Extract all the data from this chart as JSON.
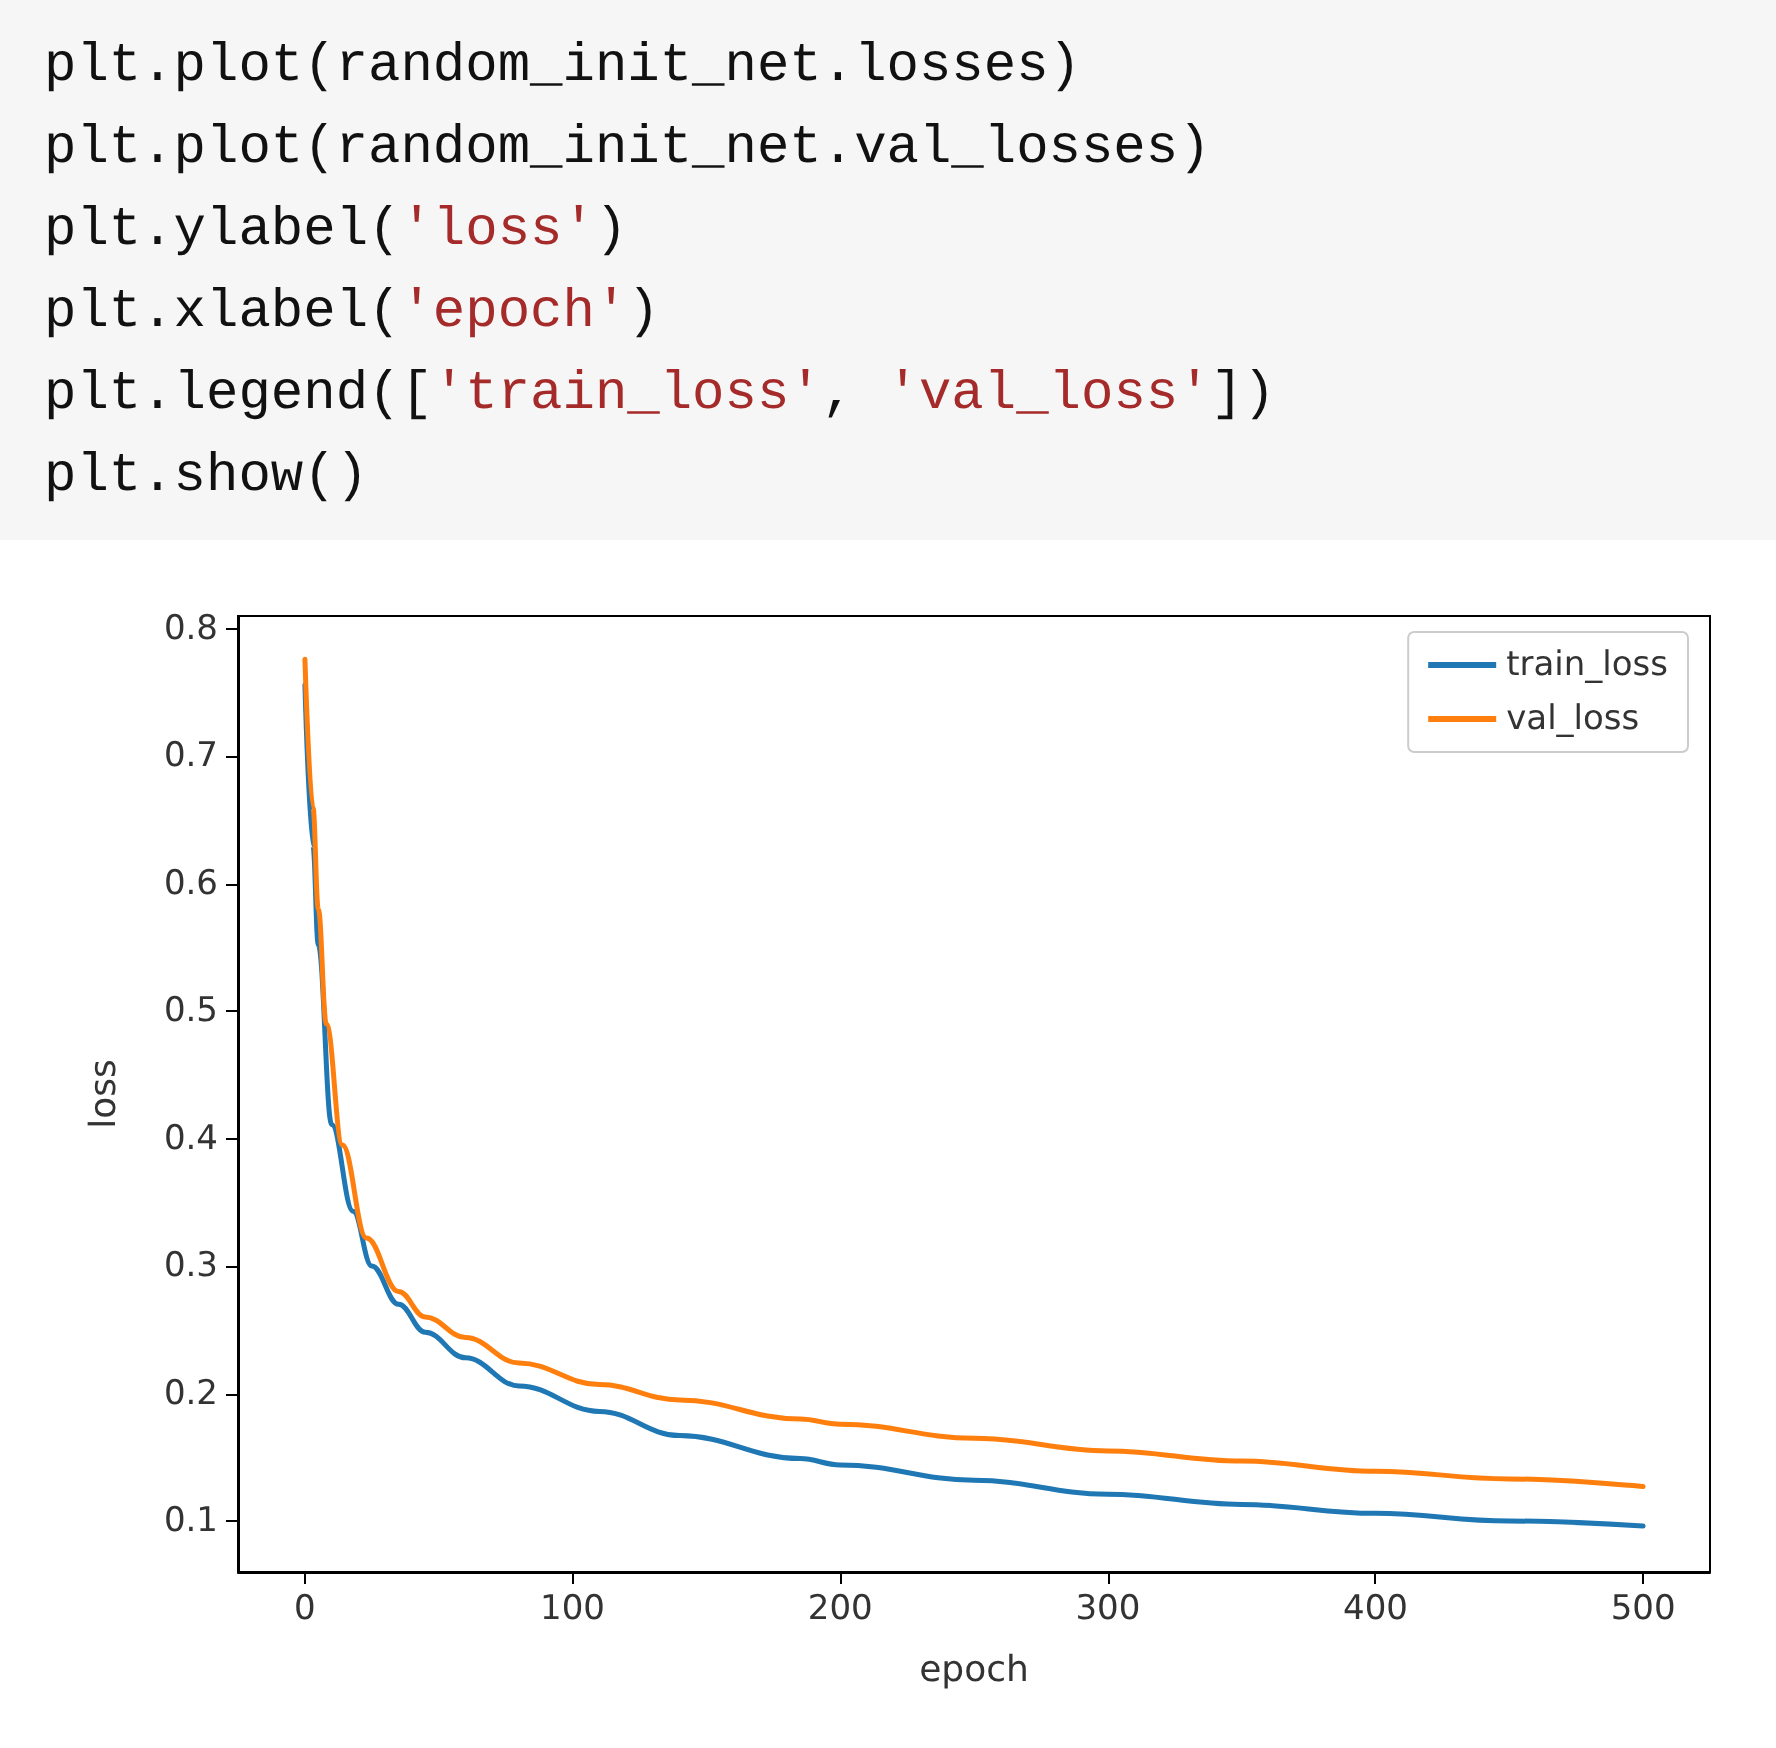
{
  "chart_data": {
    "type": "line",
    "xlabel": "epoch",
    "ylabel": "loss",
    "annotations": [
      "plt.plot(random_init_net.losses)",
      "plt.plot(random_init_net.val_losses)",
      "plt.ylabel('loss')",
      "plt.xlabel('epoch')",
      "plt.legend(['train_loss', 'val_loss'])",
      "plt.show()"
    ],
    "xlim": [
      -25,
      525
    ],
    "xticks": [
      0,
      100,
      200,
      300,
      400,
      500
    ],
    "ylim": [
      0.06,
      0.81
    ],
    "yticks": [
      0.1,
      0.2,
      0.3,
      0.4,
      0.5,
      0.6,
      0.7,
      0.8
    ],
    "grid": false,
    "legend": "top right",
    "marker": "none",
    "line_style": "solid",
    "series": [
      {
        "name": "train_loss",
        "color": "#1f77b4",
        "x": [
          0,
          3,
          5,
          10,
          18,
          25,
          35,
          45,
          60,
          80,
          110,
          140,
          185,
          200,
          250,
          300,
          350,
          400,
          450,
          500
        ],
        "values": [
          0.756,
          0.63,
          0.552,
          0.411,
          0.343,
          0.3,
          0.27,
          0.248,
          0.228,
          0.206,
          0.186,
          0.167,
          0.149,
          0.144,
          0.132,
          0.121,
          0.113,
          0.106,
          0.1,
          0.096
        ]
      },
      {
        "name": "val_loss",
        "color": "#ff7f0e",
        "x": [
          0,
          3,
          5,
          8,
          14,
          23,
          35,
          45,
          60,
          80,
          110,
          140,
          185,
          200,
          250,
          300,
          350,
          400,
          450,
          500
        ],
        "values": [
          0.776,
          0.66,
          0.58,
          0.49,
          0.395,
          0.322,
          0.28,
          0.26,
          0.244,
          0.224,
          0.207,
          0.195,
          0.18,
          0.176,
          0.165,
          0.155,
          0.147,
          0.139,
          0.133,
          0.127
        ]
      }
    ]
  }
}
